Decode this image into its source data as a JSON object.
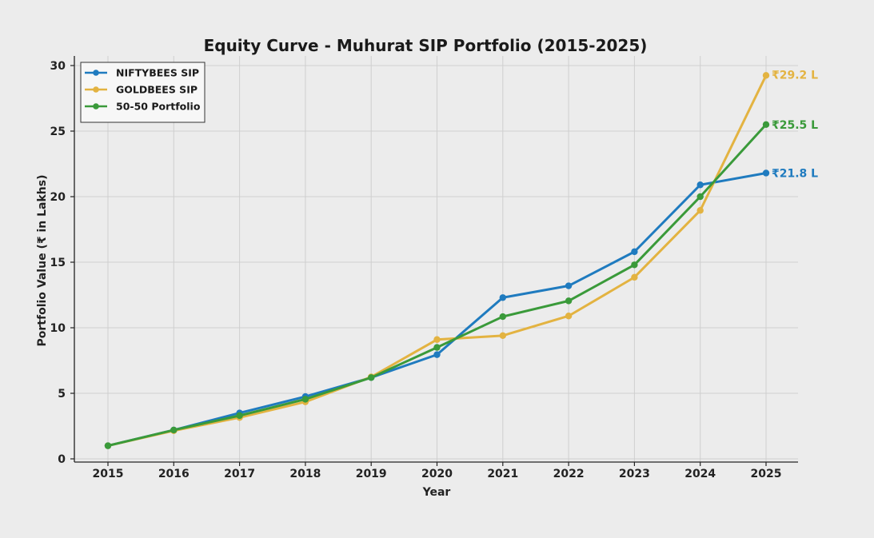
{
  "chart_data": {
    "type": "line",
    "title": "Equity Curve - Muhurat SIP Portfolio (2015-2025)",
    "xlabel": "Year",
    "ylabel": "Portfolio Value (₹ in Lakhs)",
    "x": [
      "2015",
      "2016",
      "2017",
      "2018",
      "2019",
      "2020",
      "2021",
      "2022",
      "2023",
      "2024",
      "2025"
    ],
    "ylim": [
      0,
      30
    ],
    "yticks": [
      0,
      5,
      10,
      15,
      20,
      25,
      30
    ],
    "grid": true,
    "legend_position": "top-left",
    "series": [
      {
        "name": "NIFTYBEES SIP",
        "color": "#1f7bbf",
        "values": [
          1.0,
          2.2,
          3.5,
          4.75,
          6.2,
          7.95,
          12.3,
          13.2,
          15.8,
          20.9,
          21.8
        ],
        "end_label": "₹21.8 L"
      },
      {
        "name": "GOLDBEES SIP",
        "color": "#e3b341",
        "values": [
          1.0,
          2.15,
          3.15,
          4.35,
          6.25,
          9.1,
          9.4,
          10.9,
          13.85,
          18.95,
          29.25
        ],
        "end_label": "₹29.2 L"
      },
      {
        "name": "50-50 Portfolio",
        "color": "#3a9a3a",
        "values": [
          1.0,
          2.2,
          3.3,
          4.55,
          6.2,
          8.5,
          10.85,
          12.05,
          14.8,
          20.0,
          25.5
        ],
        "end_label": "₹25.5 L"
      }
    ]
  }
}
